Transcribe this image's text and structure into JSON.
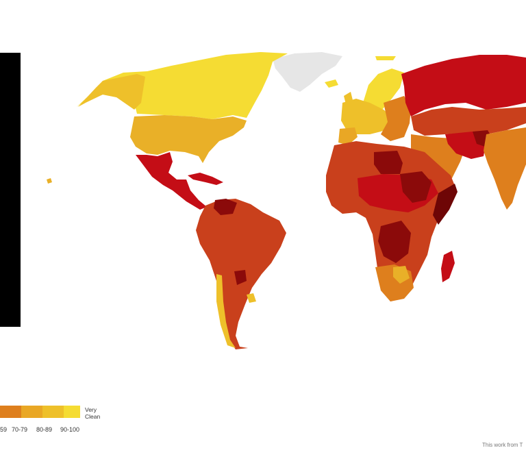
{
  "legend": {
    "end_label_line1": "Very",
    "end_label_line2": "Clean",
    "ranges": [
      "59",
      "70-79",
      "80-89",
      "90-100"
    ],
    "colors": [
      "#de7f1d",
      "#e9a725",
      "#eec02a",
      "#f5dc33"
    ]
  },
  "credit": "This work from T",
  "colors": {
    "very_clean": "#f5dc33",
    "clean": "#eec02a",
    "mid_high": "#e9a725",
    "mid": "#de7f1d",
    "mid_low": "#c9401c",
    "low": "#c40d16",
    "very_low": "#8b0a0a",
    "no_data": "#e6e6e6",
    "panel": "#000000"
  }
}
